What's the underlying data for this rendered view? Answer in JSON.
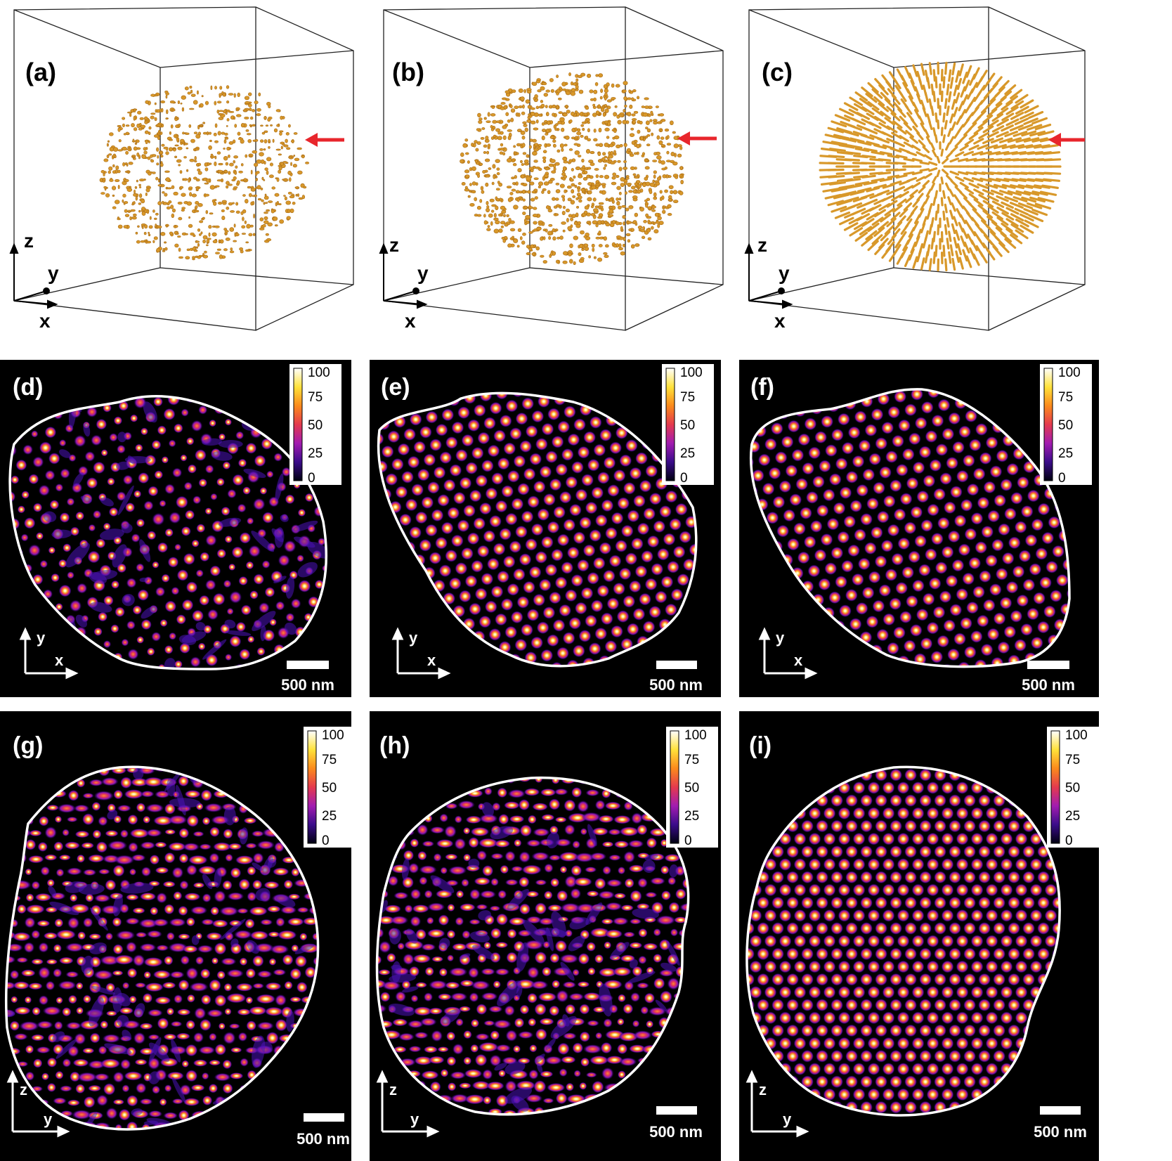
{
  "figure": {
    "top_row": {
      "panels": [
        {
          "label": "(a)",
          "axis_z": "z",
          "axis_y": "y",
          "axis_x": "x",
          "arrow_color": "#e8262c"
        },
        {
          "label": "(b)",
          "axis_z": "z",
          "axis_y": "y",
          "axis_x": "x",
          "arrow_color": "#e8262c"
        },
        {
          "label": "(c)",
          "axis_z": "z",
          "axis_y": "y",
          "axis_x": "x",
          "arrow_color": "#e8262c"
        }
      ],
      "dot_color": "#d8982a"
    },
    "middle_row": {
      "panels": [
        {
          "label": "(d)",
          "axis_v": "y",
          "axis_h": "x",
          "scalebar": "500 nm"
        },
        {
          "label": "(e)",
          "axis_v": "y",
          "axis_h": "x",
          "scalebar": "500 nm"
        },
        {
          "label": "(f)",
          "axis_v": "y",
          "axis_h": "x",
          "scalebar": "500 nm"
        }
      ]
    },
    "bottom_row": {
      "panels": [
        {
          "label": "(g)",
          "axis_v": "z",
          "axis_h": "y",
          "scalebar": "500 nm"
        },
        {
          "label": "(h)",
          "axis_v": "z",
          "axis_h": "y",
          "scalebar": "500 nm"
        },
        {
          "label": "(i)",
          "axis_v": "z",
          "axis_h": "y",
          "scalebar": "500 nm"
        }
      ]
    },
    "colorbar": {
      "ticks": [
        "100",
        "75",
        "50",
        "25",
        "0"
      ],
      "colors": [
        "#000010",
        "#3a0c8a",
        "#a21cb0",
        "#e43a4e",
        "#fb8a1c",
        "#ffe23a",
        "#ffffff"
      ]
    }
  }
}
